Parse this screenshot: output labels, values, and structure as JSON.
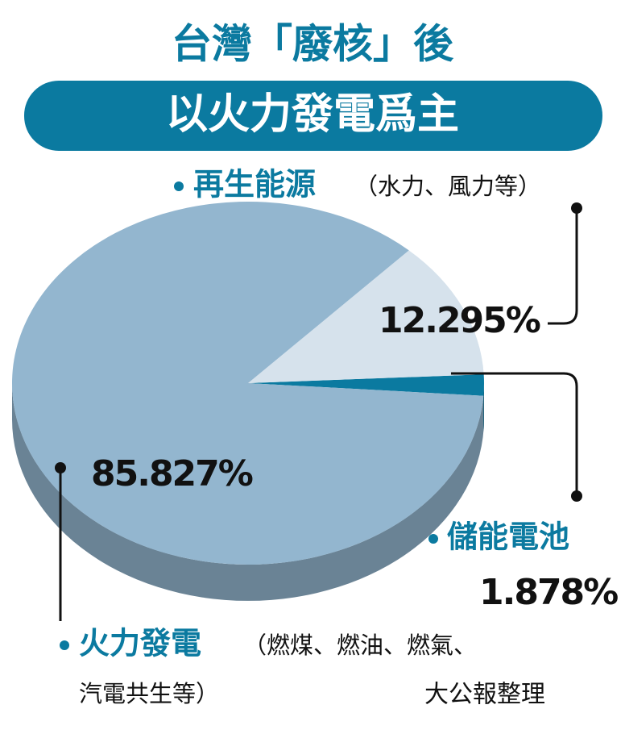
{
  "chart_data": {
    "type": "pie",
    "title": "台灣「廢核」後",
    "subtitle": "以火力發電爲主",
    "categories": [
      "儲能電池",
      "再生能源",
      "火力發電"
    ],
    "notes": [
      [],
      [
        "（水力、風力等）"
      ],
      [
        "（燃煤、燃油、燃氣、",
        "汽電共生等）"
      ]
    ],
    "values": [
      1.878,
      12.295,
      85.827
    ],
    "value_labels": [
      "1.878%",
      "12.295%",
      "85.827%"
    ],
    "colors": [
      "#0b7aa0",
      "#d6e2ec",
      "#93b6cf"
    ],
    "source": "大公報整理"
  }
}
